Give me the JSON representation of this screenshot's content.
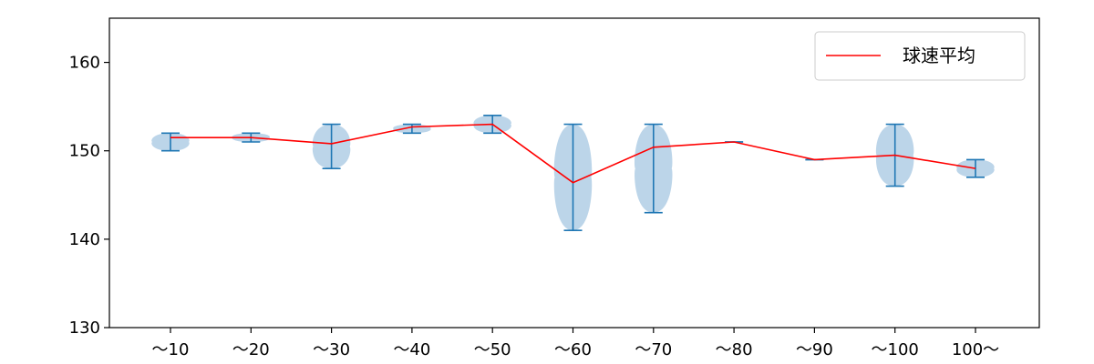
{
  "chart_data": {
    "type": "violin",
    "categories": [
      "～10",
      "～20",
      "～30",
      "～40",
      "～50",
      "～60",
      "～70",
      "～80",
      "～90",
      "～100",
      "100～"
    ],
    "ylim": [
      130,
      165
    ],
    "yticks": [
      130,
      140,
      150,
      160
    ],
    "grid": false,
    "legend_position": "top-right",
    "colors": {
      "violin_fill": "#b8d3e8",
      "violin_line": "#1f77b4",
      "mean_line": "#ff0000"
    },
    "distributions": [
      {
        "category": "～10",
        "min": 150,
        "max": 152,
        "mean": 151.5
      },
      {
        "category": "～20",
        "min": 151,
        "max": 152,
        "mean": 151.5
      },
      {
        "category": "～30",
        "min": 148,
        "max": 153,
        "mean": 150.8
      },
      {
        "category": "～40",
        "min": 152,
        "max": 153,
        "mean": 152.7
      },
      {
        "category": "～50",
        "min": 152,
        "max": 154,
        "mean": 153.0
      },
      {
        "category": "～60",
        "min": 141,
        "max": 153,
        "mean": 146.4
      },
      {
        "category": "～70",
        "min": 143,
        "max": 153,
        "mean": 150.4
      },
      {
        "category": "～80",
        "min": 151,
        "max": 151,
        "mean": 151.0
      },
      {
        "category": "～90",
        "min": 149,
        "max": 149,
        "mean": 149.0
      },
      {
        "category": "～100",
        "min": 146,
        "max": 153,
        "mean": 149.5
      },
      {
        "category": "100～",
        "min": 147,
        "max": 149,
        "mean": 148.0
      }
    ],
    "series": [
      {
        "name": "球速平均",
        "values": [
          151.5,
          151.5,
          150.8,
          152.7,
          153.0,
          146.4,
          150.4,
          151.0,
          149.0,
          149.5,
          148.0
        ]
      }
    ]
  }
}
